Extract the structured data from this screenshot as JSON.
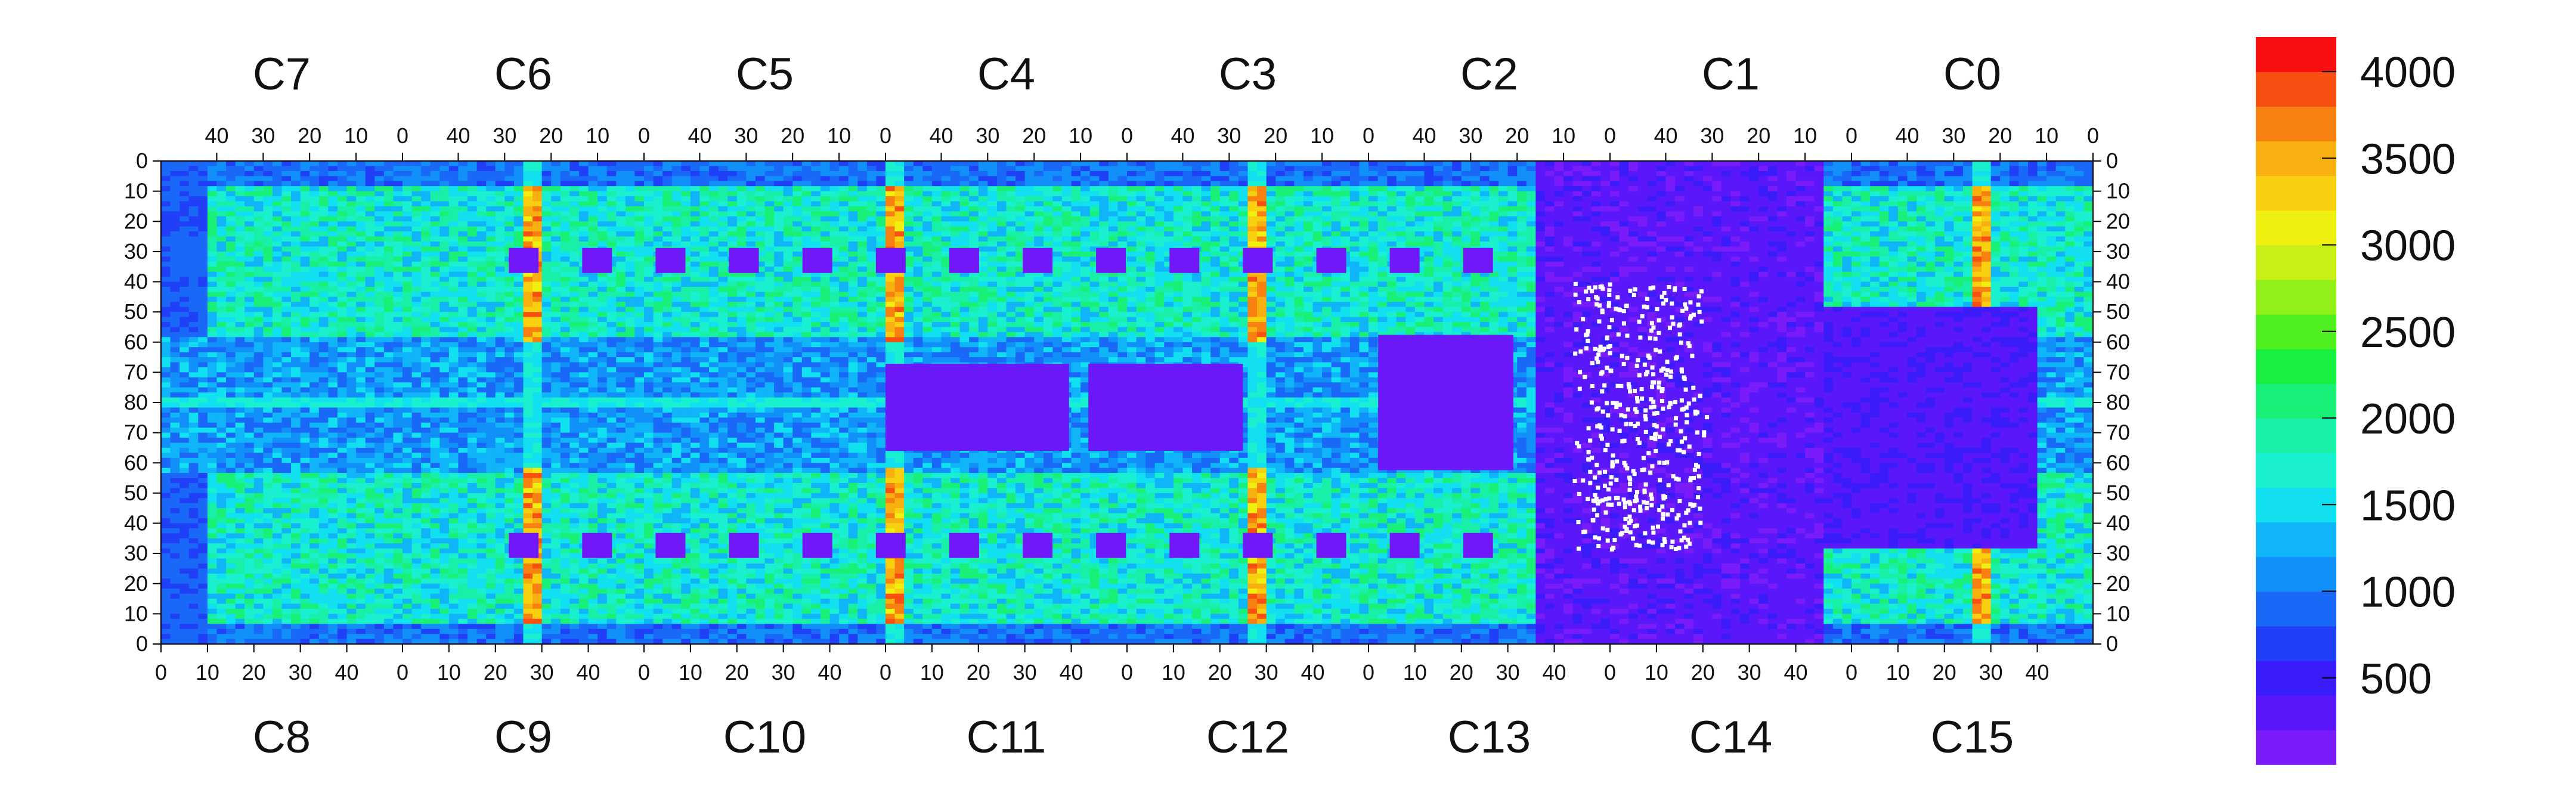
{
  "chart_data": {
    "type": "heatmap",
    "title": "",
    "xlabel": "",
    "ylabel": "",
    "top_chips": [
      "C7",
      "C6",
      "C5",
      "C4",
      "C3",
      "C2",
      "C1",
      "C0"
    ],
    "bottom_chips": [
      "C8",
      "C9",
      "C10",
      "C11",
      "C12",
      "C13",
      "C14",
      "C15"
    ],
    "top_x_ticks": [
      "40",
      "30",
      "20",
      "10",
      "0"
    ],
    "bottom_x_ticks": [
      "0",
      "10",
      "20",
      "30",
      "40"
    ],
    "y_ticks": [
      "0",
      "10",
      "20",
      "30",
      "40",
      "50",
      "60",
      "70",
      "80",
      "70",
      "60",
      "50",
      "40",
      "30",
      "20",
      "10",
      "0"
    ],
    "xlim_per_chip": [
      0,
      52
    ],
    "ylim_per_half": [
      0,
      80
    ],
    "colorbar": {
      "range": [
        0,
        4200
      ],
      "ticks": [
        "500",
        "1000",
        "1500",
        "2000",
        "2500",
        "3000",
        "3500",
        "4000"
      ],
      "colors": [
        "#7a1cfa",
        "#5a18fa",
        "#3a1cfa",
        "#2040f8",
        "#1a68f8",
        "#1090f8",
        "#10b4f8",
        "#10e0f0",
        "#18f0d0",
        "#18f0a8",
        "#18f078",
        "#18f040",
        "#50f020",
        "#90f018",
        "#c8f018",
        "#f0f010",
        "#f8d010",
        "#f8b010",
        "#f88010",
        "#f85010",
        "#f81010"
      ]
    },
    "zones": [
      {
        "type": "base",
        "value": 1700
      },
      {
        "type": "edge",
        "note": "outer pixel rows",
        "value": 700
      },
      {
        "type": "mid_band",
        "note": "central rows around 80",
        "value": 800
      },
      {
        "type": "hot_column",
        "note": "chip boundaries C7-C4 / C8-C11",
        "value": 3900
      },
      {
        "type": "dead_region",
        "note": "C2/C13 and C1/C14 area",
        "value": 150
      }
    ]
  }
}
